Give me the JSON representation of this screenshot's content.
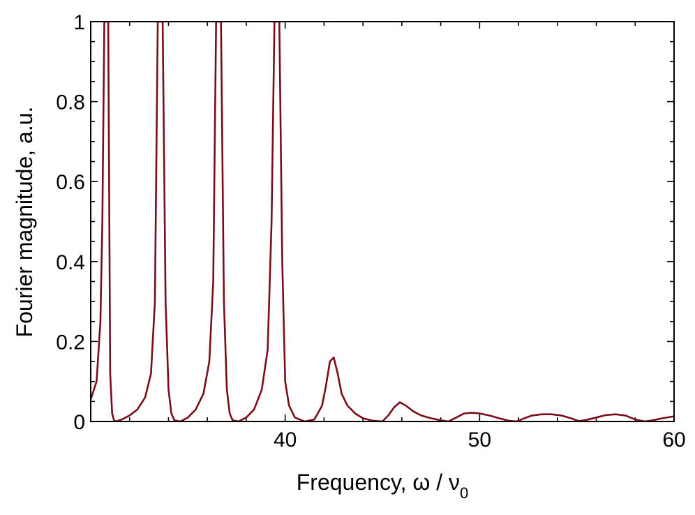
{
  "chart_data": {
    "type": "line",
    "xlabel": "Frequency, ω / ν",
    "xlabel_subscript": "0",
    "ylabel": "Fourier magnitude, a.u.",
    "xlim": [
      30,
      60
    ],
    "ylim": [
      0,
      1
    ],
    "x_ticks": [
      40,
      50,
      60
    ],
    "x_tick_labels": [
      "40",
      "50",
      "60"
    ],
    "y_ticks": [
      0,
      0.2,
      0.4,
      0.6,
      0.8,
      1
    ],
    "y_tick_labels": [
      "0",
      "0.2",
      "0.4",
      "0.6",
      "0.8",
      "1"
    ],
    "grid": false,
    "line_color": "#7a0d1a",
    "series": [
      {
        "x": [
          30.0,
          30.3,
          30.5,
          30.6,
          30.7,
          30.8,
          30.9,
          31.0,
          31.1,
          31.2,
          31.3,
          31.6,
          32.0,
          32.4,
          32.8,
          33.1,
          33.3,
          33.45,
          33.55,
          33.7,
          33.85,
          34.0,
          34.15,
          34.3,
          34.6,
          35.0,
          35.4,
          35.8,
          36.1,
          36.3,
          36.45,
          36.55,
          36.7,
          36.85,
          37.0,
          37.15,
          37.3,
          37.6,
          38.0,
          38.4,
          38.8,
          39.1,
          39.3,
          39.45,
          39.55,
          39.7,
          39.85,
          40.0,
          40.2,
          40.5,
          41.0,
          41.5,
          41.9,
          42.1,
          42.3,
          42.5,
          42.7,
          42.9,
          43.2,
          43.6,
          44.0,
          44.5,
          45.0,
          45.3,
          45.6,
          45.9,
          46.2,
          46.6,
          47.0,
          47.5,
          48.0,
          48.4,
          48.8,
          49.2,
          49.6,
          50.0,
          50.5,
          51.0,
          51.5,
          51.9,
          52.3,
          52.7,
          53.2,
          53.7,
          54.2,
          54.7,
          55.1,
          55.5,
          56.0,
          56.5,
          57.0,
          57.5,
          58.0,
          58.5,
          58.9,
          59.4,
          60.0
        ],
        "values": [
          0.055,
          0.1,
          0.25,
          0.5,
          1.0,
          1.0,
          1.0,
          0.12,
          0.02,
          0.003,
          0.0,
          0.005,
          0.015,
          0.03,
          0.06,
          0.12,
          0.3,
          1.0,
          1.0,
          1.0,
          0.3,
          0.08,
          0.02,
          0.003,
          0.0,
          0.01,
          0.03,
          0.07,
          0.15,
          0.35,
          1.0,
          1.0,
          1.0,
          0.3,
          0.08,
          0.02,
          0.003,
          0.0,
          0.01,
          0.03,
          0.08,
          0.18,
          0.5,
          1.0,
          1.0,
          1.0,
          0.4,
          0.1,
          0.04,
          0.01,
          0.0,
          0.005,
          0.04,
          0.09,
          0.15,
          0.16,
          0.12,
          0.07,
          0.04,
          0.02,
          0.008,
          0.002,
          0.0,
          0.015,
          0.035,
          0.048,
          0.04,
          0.025,
          0.015,
          0.008,
          0.003,
          0.0,
          0.01,
          0.02,
          0.022,
          0.02,
          0.015,
          0.008,
          0.002,
          0.0,
          0.008,
          0.015,
          0.018,
          0.018,
          0.015,
          0.008,
          0.001,
          0.004,
          0.01,
          0.016,
          0.018,
          0.015,
          0.005,
          0.0,
          0.003,
          0.008,
          0.013
        ]
      }
    ]
  }
}
